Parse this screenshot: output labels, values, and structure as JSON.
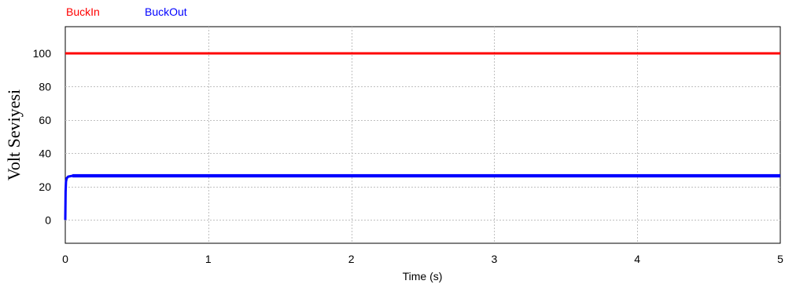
{
  "chart_data": {
    "type": "line",
    "title": "",
    "xlabel": "Time (s)",
    "ylabel": "Volt Seviyesi",
    "xlim": [
      0,
      5
    ],
    "ylim": [
      -14,
      116
    ],
    "xticks": [
      0,
      1,
      2,
      3,
      4,
      5
    ],
    "xtick_labels": [
      "0",
      "1",
      "2",
      "3",
      "4",
      "5"
    ],
    "yticks": [
      0,
      20,
      40,
      60,
      80,
      100
    ],
    "ytick_labels": [
      "0",
      "20",
      "40",
      "60",
      "80",
      "100"
    ],
    "grid": true,
    "legend_position": "top-left",
    "series": [
      {
        "name": "BuckIn",
        "color": "#ff0000",
        "x": [
          0,
          5
        ],
        "y": [
          100,
          100
        ]
      },
      {
        "name": "BuckOut",
        "color": "#0000ff",
        "ripple": 2,
        "x": [
          0,
          0.002,
          0.005,
          0.01,
          0.02,
          0.05,
          5
        ],
        "y": [
          0,
          17,
          23,
          25,
          26,
          26.5,
          26.5
        ]
      }
    ]
  }
}
